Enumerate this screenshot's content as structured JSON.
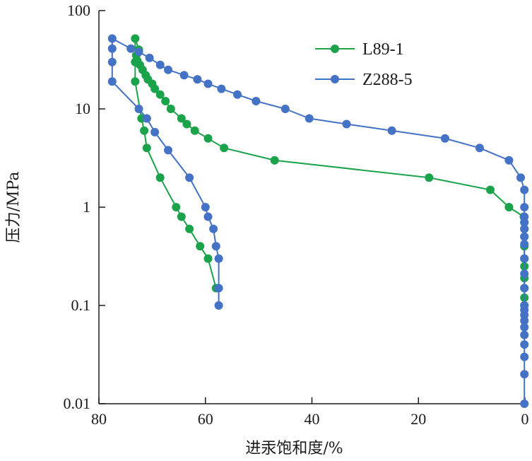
{
  "chart_data": {
    "type": "line",
    "title": "",
    "xlabel": "进汞饱和度/%",
    "ylabel": "压力/MPa",
    "x_reversed": true,
    "xlim": [
      80,
      0
    ],
    "ylim": [
      0.01,
      100
    ],
    "yscale": "log",
    "grid": false,
    "legend_position": "top-right",
    "x_ticks": [
      80,
      60,
      40,
      20,
      0
    ],
    "y_ticks": [
      {
        "value": 100,
        "label": "100"
      },
      {
        "value": 10,
        "label": "10"
      },
      {
        "value": 1,
        "label": "1"
      },
      {
        "value": 0.1,
        "label": "0.1"
      },
      {
        "value": 0.01,
        "label": "0.01"
      }
    ],
    "series": [
      {
        "name": "L89-1",
        "color": "#1aa34a",
        "points": [
          [
            0.1,
            0.1
          ],
          [
            0.1,
            0.12
          ],
          [
            0.1,
            0.15
          ],
          [
            0.1,
            0.19
          ],
          [
            0.1,
            0.25
          ],
          [
            0.1,
            0.3
          ],
          [
            0.1,
            0.4
          ],
          [
            0.1,
            0.5
          ],
          [
            0.1,
            0.6
          ],
          [
            0.1,
            0.7
          ],
          [
            0.2,
            0.8
          ],
          [
            3.0,
            1.0
          ],
          [
            6.5,
            1.5
          ],
          [
            18.0,
            2.0
          ],
          [
            47.0,
            3.0
          ],
          [
            56.5,
            4.0
          ],
          [
            59.5,
            5.0
          ],
          [
            62.0,
            6.0
          ],
          [
            63.5,
            7.0
          ],
          [
            64.5,
            8.0
          ],
          [
            66.5,
            10.0
          ],
          [
            67.5,
            12.0
          ],
          [
            68.5,
            14.0
          ],
          [
            69.5,
            16.0
          ],
          [
            70.0,
            18.0
          ],
          [
            70.8,
            20.0
          ],
          [
            71.2,
            22.0
          ],
          [
            71.8,
            25.0
          ],
          [
            72.3,
            28.0
          ],
          [
            72.8,
            31.0
          ],
          [
            73.0,
            35.0
          ],
          [
            72.5,
            40.0
          ],
          [
            73.2,
            52.0
          ],
          [
            73.2,
            30.0
          ],
          [
            73.2,
            19.0
          ],
          [
            72.0,
            8.0
          ],
          [
            71.5,
            6.0
          ],
          [
            71.0,
            4.0
          ],
          [
            68.5,
            2.0
          ],
          [
            65.5,
            1.0
          ],
          [
            64.5,
            0.8
          ],
          [
            63.0,
            0.6
          ],
          [
            61.0,
            0.4
          ],
          [
            59.5,
            0.3
          ],
          [
            58.0,
            0.15
          ]
        ]
      },
      {
        "name": "Z288-5",
        "color": "#4472c4",
        "points": [
          [
            0.1,
            0.01
          ],
          [
            0.1,
            0.02
          ],
          [
            0.1,
            0.03
          ],
          [
            0.1,
            0.04
          ],
          [
            0.1,
            0.05
          ],
          [
            0.1,
            0.06
          ],
          [
            0.1,
            0.07
          ],
          [
            0.1,
            0.08
          ],
          [
            0.1,
            0.09
          ],
          [
            0.1,
            0.1
          ],
          [
            0.1,
            0.15
          ],
          [
            0.1,
            0.21
          ],
          [
            0.1,
            0.3
          ],
          [
            0.1,
            0.42
          ],
          [
            0.1,
            0.5
          ],
          [
            0.1,
            0.6
          ],
          [
            0.1,
            0.7
          ],
          [
            0.1,
            0.8
          ],
          [
            0.1,
            1.0
          ],
          [
            0.1,
            1.5
          ],
          [
            0.8,
            2.0
          ],
          [
            3.0,
            3.0
          ],
          [
            8.5,
            4.0
          ],
          [
            15.0,
            5.0
          ],
          [
            25.0,
            6.0
          ],
          [
            33.5,
            7.0
          ],
          [
            40.5,
            8.0
          ],
          [
            45.0,
            10.0
          ],
          [
            50.5,
            12.0
          ],
          [
            54.0,
            14.0
          ],
          [
            57.0,
            16.0
          ],
          [
            59.5,
            18.0
          ],
          [
            61.5,
            20.0
          ],
          [
            64.0,
            22.0
          ],
          [
            67.0,
            25.0
          ],
          [
            68.5,
            28.0
          ],
          [
            70.5,
            33.0
          ],
          [
            72.5,
            38.0
          ],
          [
            74.0,
            41.0
          ],
          [
            77.5,
            52.0
          ],
          [
            77.5,
            41.0
          ],
          [
            77.5,
            30.0
          ],
          [
            77.5,
            19.0
          ],
          [
            72.5,
            10.0
          ],
          [
            71.0,
            8.0
          ],
          [
            69.5,
            5.8
          ],
          [
            67.0,
            3.8
          ],
          [
            63.0,
            2.0
          ],
          [
            60.0,
            1.0
          ],
          [
            59.5,
            0.8
          ],
          [
            58.5,
            0.6
          ],
          [
            58.0,
            0.4
          ],
          [
            57.5,
            0.3
          ],
          [
            57.5,
            0.15
          ],
          [
            57.5,
            0.1
          ]
        ]
      }
    ]
  }
}
